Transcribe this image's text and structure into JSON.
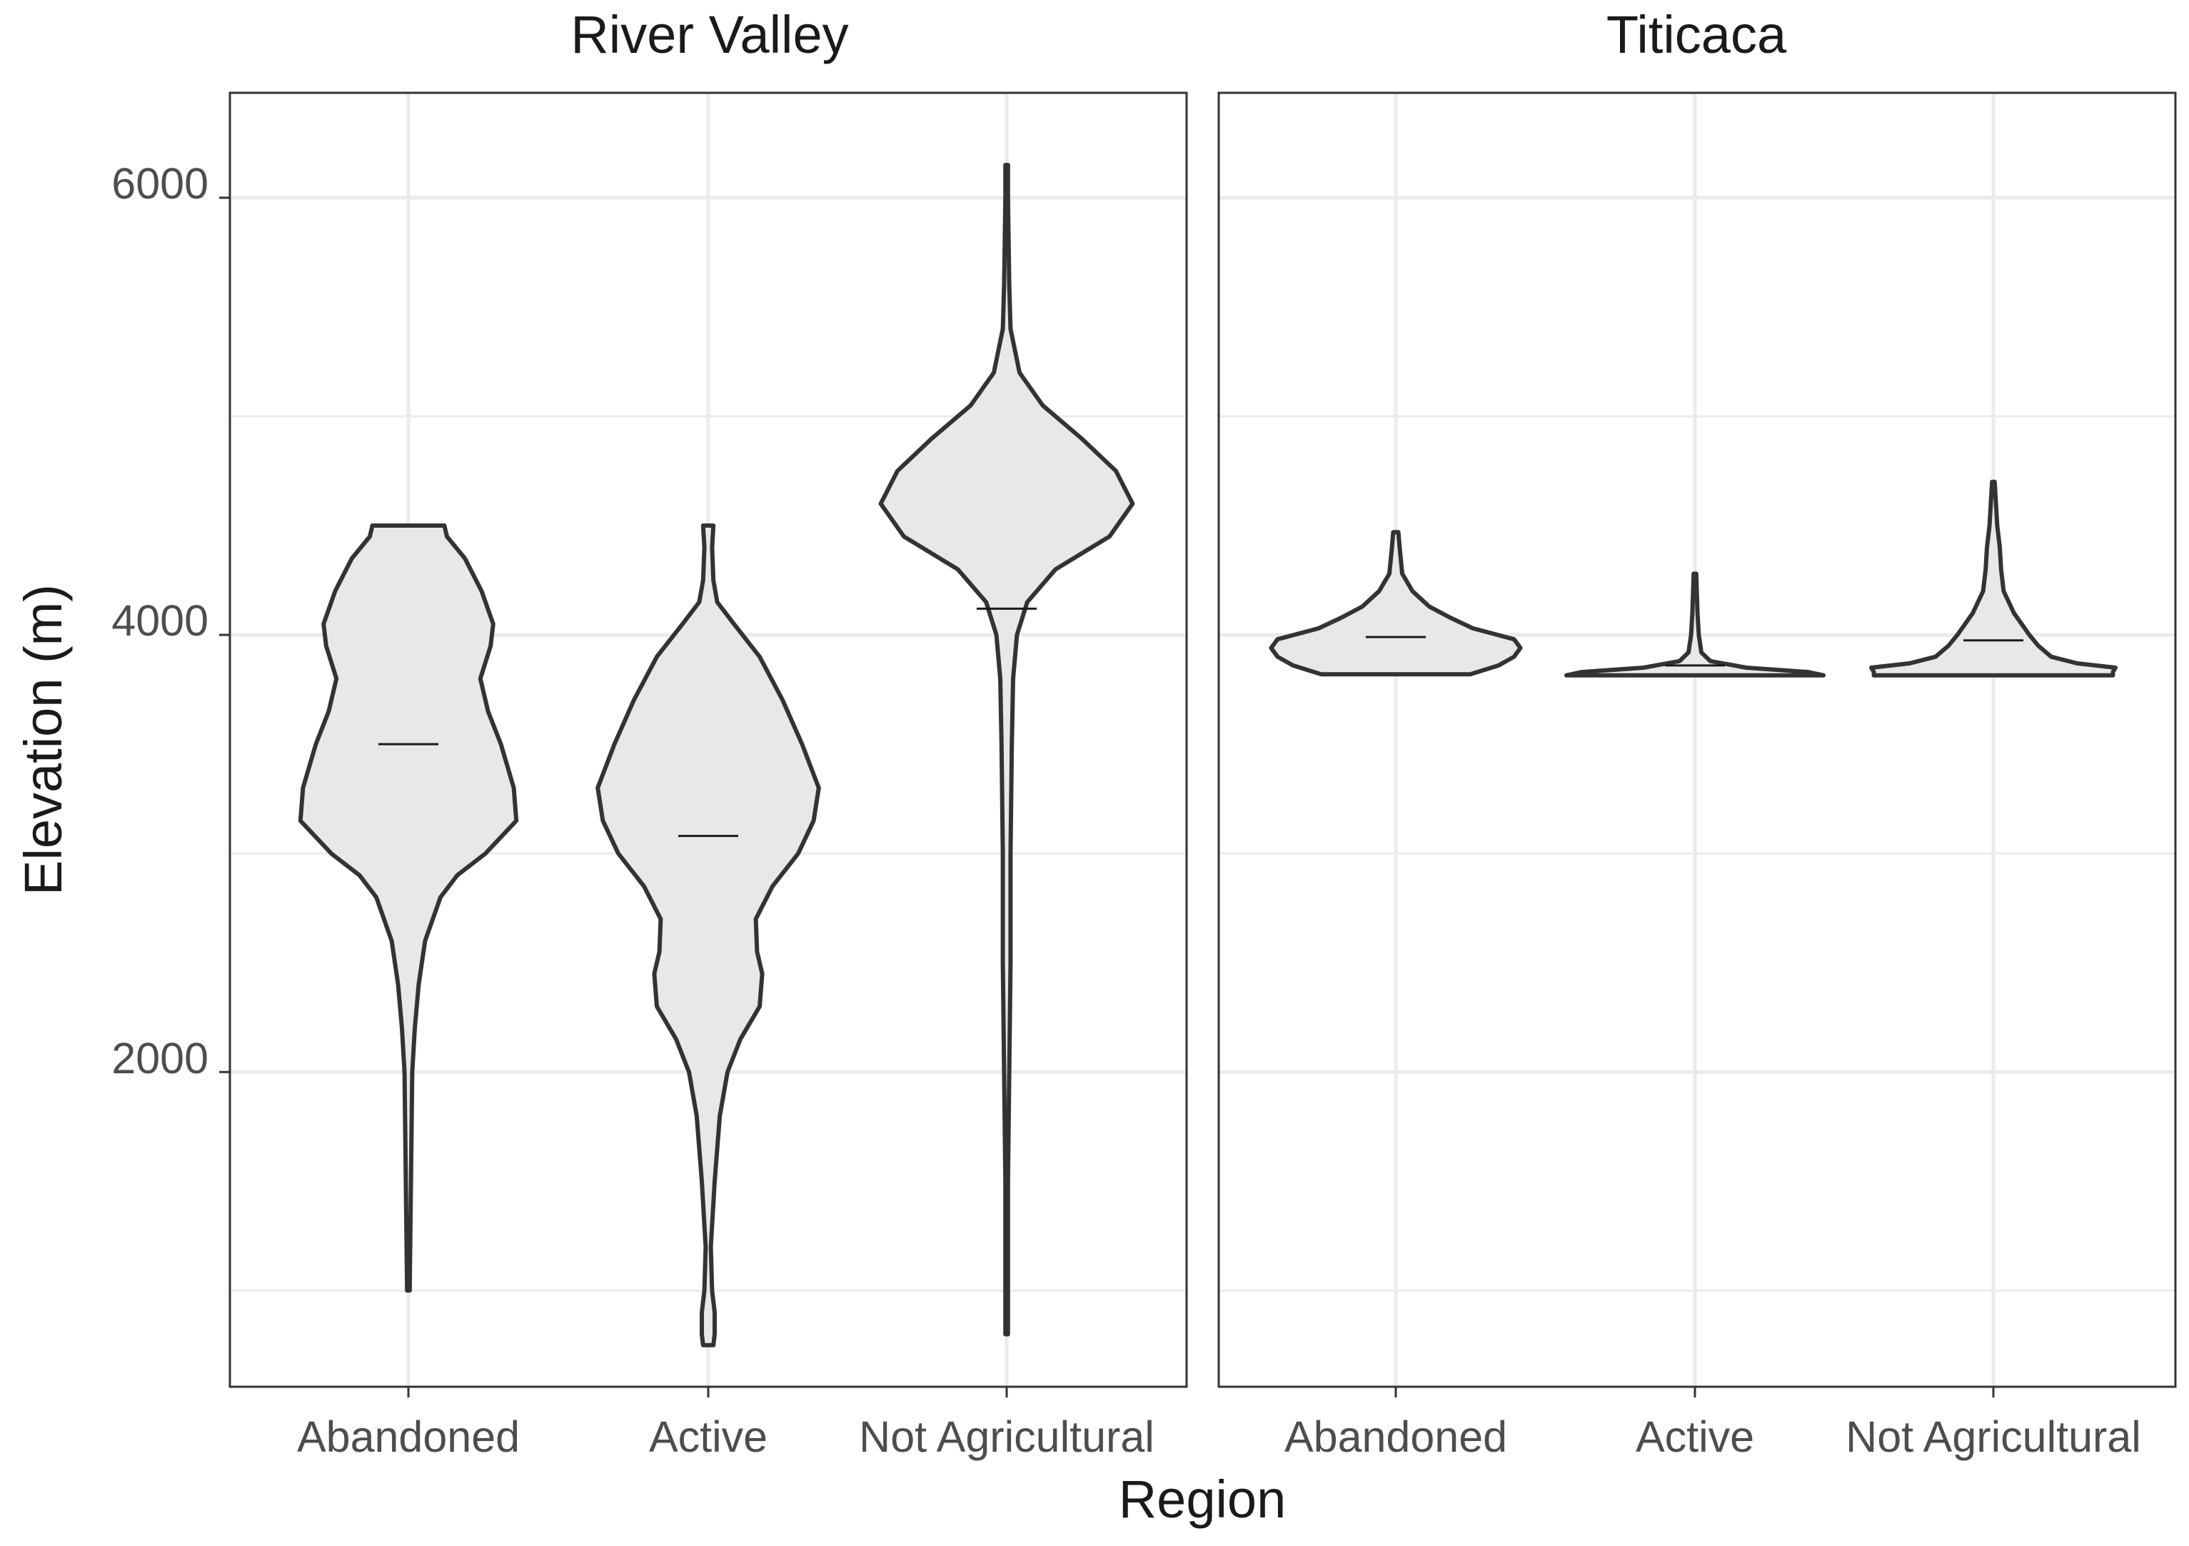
{
  "chart_data": {
    "type": "violin",
    "xlabel": "Region",
    "ylabel": "Elevation (m)",
    "ylim": [
      560,
      6480
    ],
    "yticks": [
      2000,
      4000,
      6000
    ],
    "grid": true,
    "categories": [
      "Abandoned",
      "Active",
      "Not Agricultural"
    ],
    "fill_color": "#e8e8e8",
    "outline_color": "#333333",
    "panels": [
      {
        "title": "River Valley",
        "violins": [
          {
            "category": "Abandoned",
            "median": 3500,
            "profile": [
              [
                1000,
                0.01
              ],
              [
                1500,
                0.02
              ],
              [
                2000,
                0.03
              ],
              [
                2200,
                0.05
              ],
              [
                2400,
                0.08
              ],
              [
                2600,
                0.13
              ],
              [
                2800,
                0.25
              ],
              [
                2900,
                0.38
              ],
              [
                3000,
                0.6
              ],
              [
                3150,
                0.84
              ],
              [
                3300,
                0.82
              ],
              [
                3500,
                0.72
              ],
              [
                3650,
                0.62
              ],
              [
                3800,
                0.56
              ],
              [
                3950,
                0.64
              ],
              [
                4050,
                0.66
              ],
              [
                4200,
                0.57
              ],
              [
                4350,
                0.44
              ],
              [
                4450,
                0.3
              ],
              [
                4500,
                0.28
              ]
            ]
          },
          {
            "category": "Active",
            "median": 3080,
            "profile": [
              [
                750,
                0.04
              ],
              [
                800,
                0.05
              ],
              [
                900,
                0.05
              ],
              [
                1000,
                0.03
              ],
              [
                1200,
                0.02
              ],
              [
                1500,
                0.05
              ],
              [
                1800,
                0.09
              ],
              [
                2000,
                0.15
              ],
              [
                2150,
                0.25
              ],
              [
                2300,
                0.4
              ],
              [
                2450,
                0.42
              ],
              [
                2550,
                0.38
              ],
              [
                2700,
                0.37
              ],
              [
                2850,
                0.5
              ],
              [
                3000,
                0.7
              ],
              [
                3150,
                0.82
              ],
              [
                3300,
                0.86
              ],
              [
                3500,
                0.73
              ],
              [
                3700,
                0.58
              ],
              [
                3900,
                0.4
              ],
              [
                4050,
                0.2
              ],
              [
                4150,
                0.07
              ],
              [
                4250,
                0.04
              ],
              [
                4400,
                0.03
              ],
              [
                4500,
                0.04
              ]
            ]
          },
          {
            "category": "Not Agricultural",
            "median": 4120,
            "profile": [
              [
                800,
                0.01
              ],
              [
                1500,
                0.01
              ],
              [
                2000,
                0.02
              ],
              [
                2500,
                0.03
              ],
              [
                3000,
                0.03
              ],
              [
                3500,
                0.04
              ],
              [
                3800,
                0.05
              ],
              [
                4000,
                0.08
              ],
              [
                4150,
                0.16
              ],
              [
                4300,
                0.38
              ],
              [
                4450,
                0.8
              ],
              [
                4600,
                0.98
              ],
              [
                4750,
                0.85
              ],
              [
                4900,
                0.58
              ],
              [
                5050,
                0.28
              ],
              [
                5200,
                0.1
              ],
              [
                5400,
                0.03
              ],
              [
                5600,
                0.02
              ],
              [
                6000,
                0.01
              ],
              [
                6150,
                0.01
              ]
            ]
          }
        ]
      },
      {
        "title": "Titicaca",
        "violins": [
          {
            "category": "Abandoned",
            "median": 3990,
            "profile": [
              [
                3820,
                0.58
              ],
              [
                3860,
                0.8
              ],
              [
                3900,
                0.92
              ],
              [
                3940,
                0.97
              ],
              [
                3980,
                0.92
              ],
              [
                4030,
                0.6
              ],
              [
                4080,
                0.42
              ],
              [
                4130,
                0.26
              ],
              [
                4200,
                0.13
              ],
              [
                4280,
                0.05
              ],
              [
                4400,
                0.03
              ],
              [
                4470,
                0.02
              ]
            ]
          },
          {
            "category": "Active",
            "median": 3860,
            "profile": [
              [
                3815,
                1.0
              ],
              [
                3830,
                0.88
              ],
              [
                3850,
                0.4
              ],
              [
                3880,
                0.12
              ],
              [
                3920,
                0.05
              ],
              [
                4000,
                0.03
              ],
              [
                4100,
                0.02
              ],
              [
                4280,
                0.01
              ]
            ]
          },
          {
            "category": "Not Agricultural",
            "median": 3975,
            "profile": [
              [
                3815,
                0.93
              ],
              [
                3830,
                0.93
              ],
              [
                3850,
                0.95
              ],
              [
                3870,
                0.65
              ],
              [
                3900,
                0.45
              ],
              [
                3950,
                0.35
              ],
              [
                4000,
                0.28
              ],
              [
                4100,
                0.16
              ],
              [
                4200,
                0.08
              ],
              [
                4300,
                0.06
              ],
              [
                4400,
                0.05
              ],
              [
                4500,
                0.03
              ],
              [
                4700,
                0.01
              ]
            ]
          }
        ]
      }
    ]
  }
}
